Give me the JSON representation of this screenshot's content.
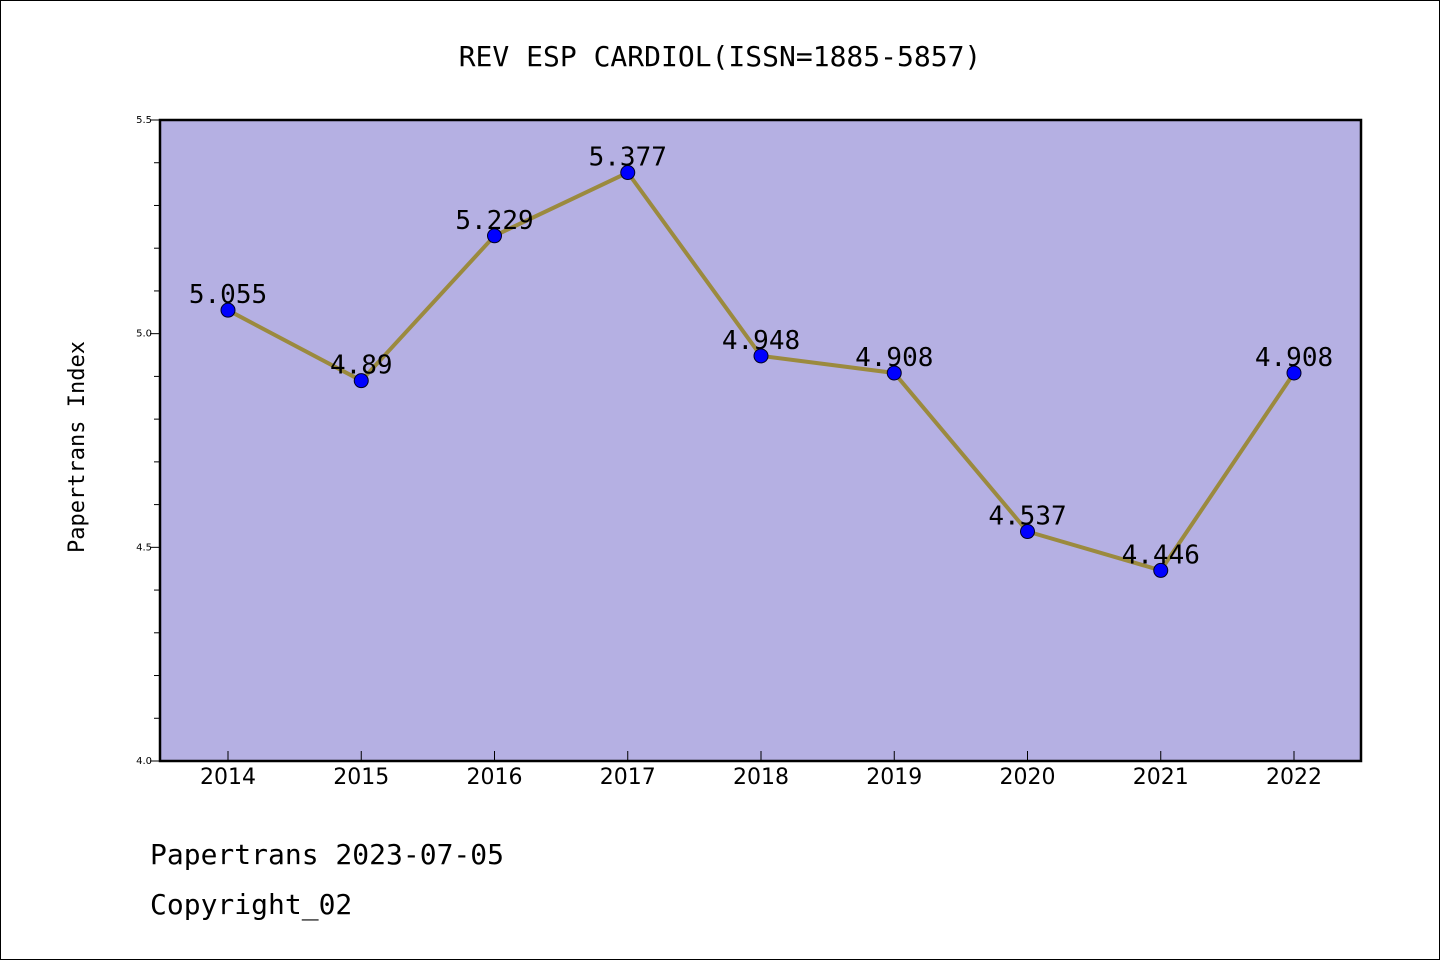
{
  "chart_data": {
    "type": "line",
    "title": "REV ESP CARDIOL(ISSN=1885-5857)",
    "xlabel": "",
    "ylabel": "Papertrans Index",
    "categories": [
      "2014",
      "2015",
      "2016",
      "2017",
      "2018",
      "2019",
      "2020",
      "2021",
      "2022"
    ],
    "series": [
      {
        "values": [
          5.055,
          4.89,
          5.229,
          5.377,
          4.948,
          4.908,
          4.537,
          4.446,
          4.908
        ],
        "labels": [
          "5.055",
          "4.89",
          "5.229",
          "5.377",
          "4.948",
          "4.908",
          "4.537",
          "4.446",
          "4.908"
        ]
      }
    ],
    "ylim": [
      4.0,
      5.5
    ],
    "yticks": [
      "4.0",
      "4.5",
      "5.0",
      "5.5"
    ],
    "grid": false,
    "colors": {
      "plot_background": "#b5b0e3",
      "line": "#9b8a3e",
      "marker": "#0000ff"
    }
  },
  "footer": {
    "line1": "Papertrans 2023-07-05",
    "line2": "Copyright_02"
  }
}
